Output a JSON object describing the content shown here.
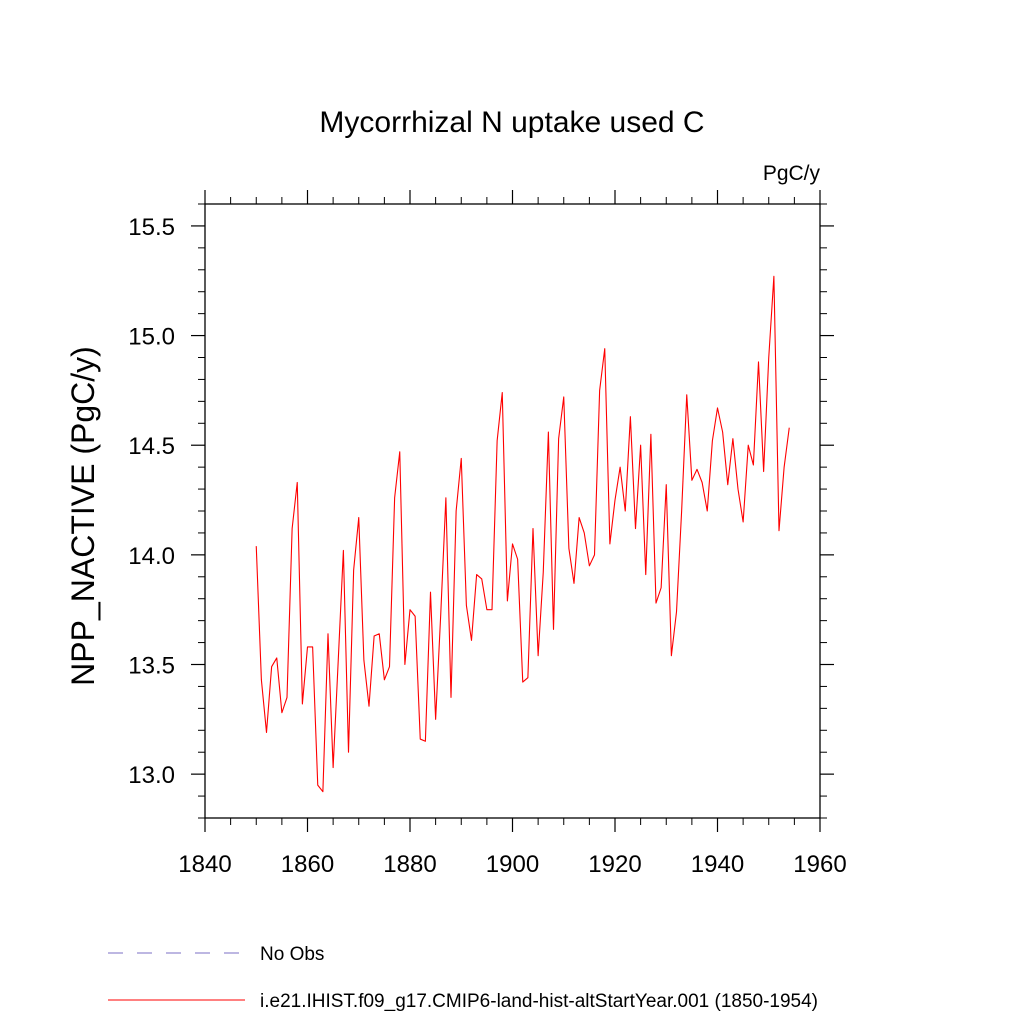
{
  "chart_data": {
    "type": "line",
    "title": "Mycorrhizal N uptake used C",
    "units_label": "PgC/y",
    "xlabel": "",
    "ylabel": "NPP_NACTIVE  (PgC/y)",
    "xlim": [
      1840,
      1960
    ],
    "ylim": [
      12.8,
      15.6
    ],
    "x_ticks": [
      1840,
      1860,
      1880,
      1900,
      1920,
      1940,
      1960
    ],
    "y_ticks": [
      "13.0",
      "13.5",
      "14.0",
      "14.5",
      "15.0",
      "15.5"
    ],
    "grid": false,
    "legend_position": "bottom-left",
    "legend": [
      {
        "label": "No Obs",
        "color": "#7b6fc4",
        "style": "dashed"
      },
      {
        "label": "i.e21.IHIST.f09_g17.CMIP6-land-hist-altStartYear.001 (1850-1954)",
        "color": "#ff0000",
        "style": "solid"
      }
    ],
    "series": [
      {
        "name": "i.e21.IHIST.f09_g17.CMIP6-land-hist-altStartYear.001 (1850-1954)",
        "color": "#ff0000",
        "x_start": 1850,
        "values": [
          14.04,
          13.43,
          13.19,
          13.49,
          13.53,
          13.28,
          13.35,
          14.12,
          14.33,
          13.32,
          13.58,
          13.58,
          12.95,
          12.92,
          13.64,
          13.03,
          13.52,
          14.02,
          13.1,
          13.93,
          14.17,
          13.52,
          13.31,
          13.63,
          13.64,
          13.43,
          13.49,
          14.26,
          14.47,
          13.5,
          13.75,
          13.72,
          13.16,
          13.15,
          13.83,
          13.25,
          13.73,
          14.26,
          13.35,
          14.2,
          14.44,
          13.77,
          13.61,
          13.91,
          13.89,
          13.75,
          13.75,
          14.52,
          14.74,
          13.79,
          14.05,
          13.98,
          13.42,
          13.44,
          14.12,
          13.54,
          13.92,
          14.56,
          13.66,
          14.53,
          14.72,
          14.03,
          13.87,
          14.17,
          14.1,
          13.95,
          14.0,
          14.75,
          14.94,
          14.05,
          14.25,
          14.4,
          14.2,
          14.63,
          14.12,
          14.5,
          13.91,
          14.55,
          13.78,
          13.85,
          14.32,
          13.54,
          13.74,
          14.2,
          14.73,
          14.34,
          14.39,
          14.33,
          14.2,
          14.52,
          14.67,
          14.56,
          14.32,
          14.53,
          14.3,
          14.15,
          14.5,
          14.41,
          14.88,
          14.38,
          14.9,
          15.27,
          14.11,
          14.4,
          14.58
        ]
      }
    ]
  }
}
